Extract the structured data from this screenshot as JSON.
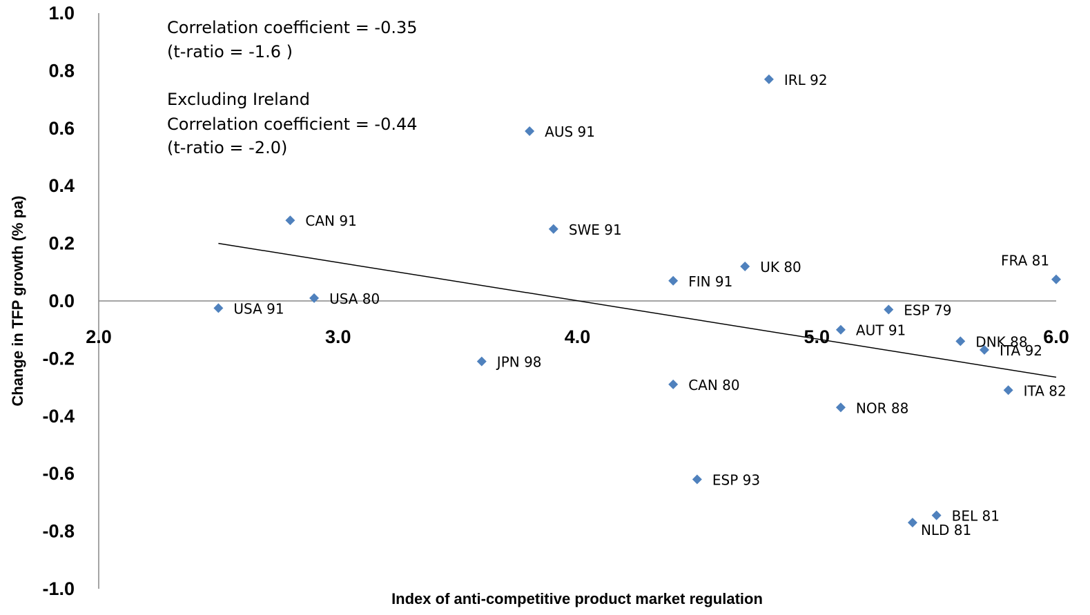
{
  "chart_data": {
    "type": "scatter",
    "xlabel": "Index of anti-competitive product market regulation",
    "ylabel": "Change in TFP growth (% pa)",
    "xlim": [
      2.0,
      6.0
    ],
    "ylim": [
      -1.0,
      1.0
    ],
    "x_ticks": [
      "2.0",
      "3.0",
      "4.0",
      "5.0",
      "6.0"
    ],
    "y_ticks": [
      "1.0",
      "0.8",
      "0.6",
      "0.4",
      "0.2",
      "0.0",
      "-0.2",
      "-0.4",
      "-0.6",
      "-0.8",
      "-1.0"
    ],
    "marker_color": "#4f81bd",
    "points": [
      {
        "label": "USA 91",
        "x": 2.5,
        "y": -0.025
      },
      {
        "label": "USA 80",
        "x": 2.9,
        "y": 0.01
      },
      {
        "label": "CAN 91",
        "x": 2.8,
        "y": 0.28
      },
      {
        "label": "JPN 98",
        "x": 3.6,
        "y": -0.21
      },
      {
        "label": "AUS 91",
        "x": 3.8,
        "y": 0.59
      },
      {
        "label": "SWE 91",
        "x": 3.9,
        "y": 0.25
      },
      {
        "label": "FIN 91",
        "x": 4.4,
        "y": 0.07
      },
      {
        "label": "CAN 80",
        "x": 4.4,
        "y": -0.29
      },
      {
        "label": "ESP 93",
        "x": 4.5,
        "y": -0.62
      },
      {
        "label": "UK 80",
        "x": 4.7,
        "y": 0.12
      },
      {
        "label": "IRL 92",
        "x": 4.8,
        "y": 0.77
      },
      {
        "label": "AUT 91",
        "x": 5.1,
        "y": -0.1
      },
      {
        "label": "NOR 88",
        "x": 5.1,
        "y": -0.37
      },
      {
        "label": "ESP 79",
        "x": 5.3,
        "y": -0.03
      },
      {
        "label": "NLD 81",
        "x": 5.4,
        "y": -0.77
      },
      {
        "label": "BEL 81",
        "x": 5.5,
        "y": -0.745
      },
      {
        "label": "DNK 88",
        "x": 5.6,
        "y": -0.14
      },
      {
        "label": "ITA 92",
        "x": 5.7,
        "y": -0.17
      },
      {
        "label": "ITA 82",
        "x": 5.8,
        "y": -0.31
      },
      {
        "label": "FRA 81",
        "x": 6.0,
        "y": 0.075
      }
    ],
    "trendline": {
      "x": [
        2.5,
        6.0
      ],
      "y": [
        0.2,
        -0.265
      ]
    },
    "annotations": [
      "Correlation coefficient = -0.35",
      "(t-ratio = -1.6 )",
      "Excluding Ireland",
      "Correlation coefficient = -0.44",
      "(t-ratio = -2.0)"
    ]
  }
}
